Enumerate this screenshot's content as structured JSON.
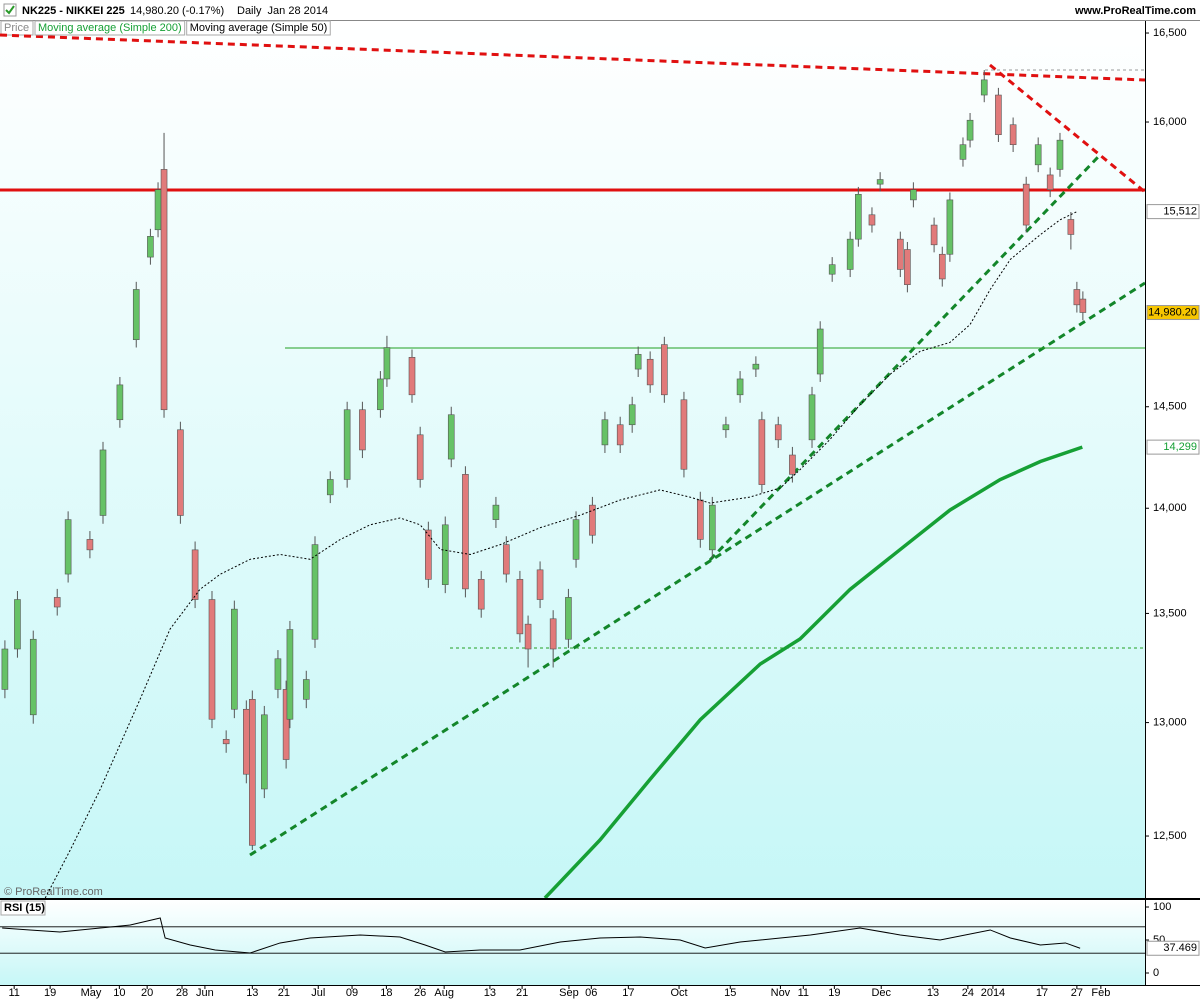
{
  "chart_data": [
    {
      "type": "candlestick",
      "title": "NK225 - NIKKEI 225",
      "subtitle": "14,980.20 (-0.17%)",
      "period": "Daily  Jan 28 2014",
      "source": "www.ProRealTime.com",
      "copyright": "© ProRealTime.com",
      "price_label": "Price",
      "last_value_label": "14,980.20",
      "flag_color": "#f7c600",
      "up_color": "#66c266",
      "down_color": "#e17a7a",
      "log_scale": true,
      "xlim": [
        -2.6,
        207.5
      ],
      "ylim": [
        12235,
        16563
      ],
      "yticks": [
        {
          "value": 16500,
          "label": "16,500"
        },
        {
          "value": 16000,
          "label": "16,000"
        },
        {
          "value": 14500,
          "label": "14,500"
        },
        {
          "value": 14000,
          "label": "14,000"
        },
        {
          "value": 13500,
          "label": "13,500"
        },
        {
          "value": 13000,
          "label": "13,000"
        },
        {
          "value": 12500,
          "label": "12,500"
        }
      ],
      "xticks": [
        {
          "value": 0,
          "label": "11"
        },
        {
          "value": 6.6,
          "label": "19"
        },
        {
          "value": 14.1,
          "label": "May"
        },
        {
          "value": 19.3,
          "label": "10"
        },
        {
          "value": 24.4,
          "label": "20"
        },
        {
          "value": 30.8,
          "label": "28"
        },
        {
          "value": 35,
          "label": "Jun"
        },
        {
          "value": 43.7,
          "label": "13"
        },
        {
          "value": 49.5,
          "label": "21"
        },
        {
          "value": 55.8,
          "label": "Jul"
        },
        {
          "value": 62,
          "label": "09"
        },
        {
          "value": 68.3,
          "label": "18"
        },
        {
          "value": 74.5,
          "label": "26"
        },
        {
          "value": 78.9,
          "label": "Aug"
        },
        {
          "value": 87.3,
          "label": "13"
        },
        {
          "value": 93.2,
          "label": "21"
        },
        {
          "value": 101.8,
          "label": "Sep"
        },
        {
          "value": 105.9,
          "label": "06"
        },
        {
          "value": 112.7,
          "label": "17"
        },
        {
          "value": 122,
          "label": "Oct"
        },
        {
          "value": 131.4,
          "label": "15"
        },
        {
          "value": 140.6,
          "label": "Nov"
        },
        {
          "value": 144.8,
          "label": "11"
        },
        {
          "value": 150.5,
          "label": "19"
        },
        {
          "value": 159.1,
          "label": "Dec"
        },
        {
          "value": 168.6,
          "label": "13"
        },
        {
          "value": 175,
          "label": "24"
        },
        {
          "value": 179.6,
          "label": "2014"
        },
        {
          "value": 188.6,
          "label": "17"
        },
        {
          "value": 195,
          "label": "27"
        },
        {
          "value": 199.4,
          "label": "Feb"
        }
      ],
      "x": [
        -1.7,
        0.6,
        3.5,
        7.9,
        9.9,
        13.9,
        16.3,
        19.4,
        22.4,
        25.0,
        26.4,
        27.5,
        30.5,
        33.2,
        36.3,
        38.9,
        40.4,
        42.6,
        43.7,
        45.9,
        48.4,
        49.9,
        50.6,
        53.6,
        55.2,
        58.0,
        61.1,
        63.9,
        67.2,
        68.4,
        73.0,
        74.5,
        76.0,
        79.1,
        80.2,
        82.8,
        85.7,
        88.4,
        90.3,
        92.8,
        94.3,
        96.5,
        98.9,
        101.7,
        103.1,
        106.1,
        108.4,
        111.2,
        113.4,
        114.5,
        116.7,
        119.3,
        122.9,
        125.9,
        128.1,
        130.6,
        133.2,
        136.1,
        137.2,
        140.2,
        142.8,
        146.4,
        147.9,
        150.1,
        153.4,
        154.9,
        157.4,
        158.9,
        162.6,
        163.9,
        165.0,
        168.8,
        170.3,
        171.7,
        174.1,
        175.4,
        178.0,
        180.6,
        183.3,
        185.7,
        187.9,
        190.1,
        191.9,
        193.9,
        195.0,
        196.1
      ],
      "open": [
        13150,
        13335,
        13035,
        13575,
        13685,
        13850,
        13965,
        14435,
        14840,
        15270,
        15415,
        15740,
        14385,
        13800,
        13565,
        12925,
        13060,
        13060,
        13105,
        12705,
        13150,
        13150,
        13015,
        13105,
        13380,
        14065,
        14140,
        14485,
        14485,
        14640,
        14750,
        14360,
        13895,
        13635,
        14240,
        14165,
        13660,
        13945,
        13825,
        13660,
        13450,
        13705,
        13475,
        13380,
        13755,
        14015,
        14310,
        14410,
        14410,
        14690,
        14740,
        14815,
        14535,
        14040,
        13800,
        14385,
        14560,
        14690,
        14435,
        14410,
        14260,
        14335,
        14665,
        15180,
        15205,
        15365,
        15495,
        15660,
        15365,
        15310,
        15575,
        15440,
        15285,
        15285,
        15795,
        15900,
        16150,
        16150,
        15985,
        15660,
        15765,
        15710,
        15740,
        15470,
        15100,
        15050
      ],
      "high": [
        13375,
        13605,
        13420,
        13615,
        13985,
        13890,
        14325,
        14650,
        15140,
        15420,
        15670,
        15940,
        14425,
        13840,
        13605,
        12965,
        13560,
        13100,
        13145,
        13075,
        13330,
        13190,
        13465,
        13235,
        13865,
        14180,
        14525,
        14525,
        14680,
        14860,
        14790,
        14400,
        13935,
        13960,
        14500,
        14205,
        13700,
        14055,
        13865,
        13700,
        13490,
        13745,
        13515,
        13615,
        13985,
        14055,
        14475,
        14450,
        14550,
        14805,
        14780,
        14855,
        14575,
        14080,
        14055,
        14450,
        14680,
        14755,
        14475,
        14450,
        14300,
        14600,
        14935,
        15270,
        15405,
        15645,
        15535,
        15725,
        15405,
        15350,
        15670,
        15480,
        15325,
        15615,
        15915,
        16050,
        16290,
        16190,
        16025,
        15700,
        15915,
        15750,
        15940,
        15510,
        15140,
        15090
      ],
      "low": [
        13110,
        13295,
        12995,
        13490,
        13645,
        13760,
        13925,
        14395,
        14800,
        15230,
        15375,
        14445,
        13925,
        13525,
        12975,
        12865,
        13020,
        12730,
        12440,
        12665,
        13110,
        12795,
        12975,
        13065,
        13340,
        14025,
        14100,
        14245,
        14445,
        14600,
        14520,
        14100,
        13620,
        13595,
        14200,
        13575,
        13480,
        13905,
        13645,
        13365,
        13250,
        13525,
        13250,
        13340,
        13715,
        13830,
        14270,
        14270,
        14370,
        14650,
        14570,
        14520,
        14150,
        13810,
        13760,
        14345,
        14520,
        14650,
        14075,
        14295,
        14125,
        14295,
        14625,
        15140,
        15165,
        15325,
        15400,
        15620,
        15165,
        15085,
        15535,
        15295,
        15115,
        15245,
        15755,
        15860,
        16110,
        15890,
        15835,
        15400,
        15725,
        15590,
        15700,
        15310,
        14980,
        14940
      ],
      "close": [
        13335,
        13565,
        13380,
        13530,
        13945,
        13800,
        14285,
        14610,
        15100,
        15380,
        15630,
        14485,
        13965,
        13565,
        13015,
        12905,
        13520,
        12770,
        12460,
        13035,
        13290,
        12835,
        13425,
        13195,
        13825,
        14140,
        14485,
        14285,
        14640,
        14800,
        14560,
        14140,
        13660,
        13920,
        14460,
        13615,
        13520,
        14015,
        13685,
        13405,
        13335,
        13565,
        13335,
        13575,
        13945,
        13870,
        14435,
        14310,
        14510,
        14765,
        14610,
        14560,
        14190,
        13850,
        14015,
        14410,
        14640,
        14715,
        14115,
        14335,
        14165,
        14560,
        14895,
        15230,
        15365,
        15605,
        15440,
        15685,
        15205,
        15125,
        15630,
        15335,
        15155,
        15575,
        15875,
        16010,
        16235,
        15930,
        15875,
        15440,
        15875,
        15630,
        15900,
        15390,
        15020,
        14980.2
      ],
      "series": [
        {
          "name": "Moving average (Simple 200)",
          "color": "#16a035",
          "last_value_label": "14,299",
          "x": [
            97.4,
            107.5,
            116.7,
            125.9,
            136.9,
            144.2,
            153.4,
            162.6,
            171.7,
            180.9,
            188.3,
            196.0
          ],
          "values": [
            12235,
            12483,
            12748,
            13013,
            13266,
            13381,
            13613,
            13802,
            13991,
            14139,
            14228,
            14299
          ]
        },
        {
          "name": "Moving average (Simple 50)",
          "color": "#000000",
          "last_value_label": "15,512",
          "x": [
            5.7,
            10.3,
            15.8,
            23.1,
            28.6,
            34.1,
            37.8,
            43.3,
            48.8,
            54.3,
            59.8,
            65.3,
            70.8,
            74.5,
            78.2,
            83.7,
            89.2,
            96.5,
            103.9,
            111.2,
            118.5,
            124.0,
            127.7,
            135.0,
            140.6,
            144.2,
            149.7,
            155.2,
            160.7,
            166.2,
            171.7,
            175.4,
            179.1,
            182.8,
            188.3,
            191.9,
            195.0
          ],
          "values": [
            12235,
            12440,
            12704,
            13105,
            13427,
            13613,
            13684,
            13755,
            13778,
            13755,
            13849,
            13920,
            13953,
            13920,
            13802,
            13778,
            13825,
            13906,
            13967,
            14040,
            14089,
            14054,
            14025,
            14054,
            14099,
            14188,
            14337,
            14510,
            14663,
            14780,
            14826,
            14918,
            15100,
            15258,
            15389,
            15468,
            15512
          ]
        }
      ]
    },
    {
      "type": "line",
      "title": "RSI (15)",
      "color": "#000000",
      "last_value_label": "37.469",
      "ylim": [
        -18.2,
        110.6
      ],
      "yticks": [
        100,
        50,
        0
      ],
      "levels": [
        70,
        30
      ],
      "x": [
        -2.2,
        2.9,
        8.4,
        15.8,
        21.3,
        26.8,
        27.7,
        32.3,
        36.9,
        43.3,
        48.8,
        54.3,
        63.5,
        70.8,
        75.4,
        79.1,
        85.5,
        92.8,
        100.2,
        107.5,
        114.9,
        122.2,
        126.8,
        133.2,
        140.6,
        146.1,
        155.2,
        162.6,
        169.9,
        179.1,
        182.8,
        188.3,
        192.9,
        195.6
      ],
      "values": [
        68.2,
        65.2,
        62.1,
        68.2,
        72.7,
        83.3,
        53.0,
        42.4,
        34.8,
        30.3,
        45.5,
        53.0,
        57.6,
        54.5,
        42.4,
        31.8,
        34.8,
        34.8,
        47.0,
        53.0,
        54.5,
        50.0,
        37.9,
        47.0,
        53.0,
        57.6,
        68.2,
        57.6,
        50.0,
        65.2,
        53.0,
        42.4,
        45.5,
        37.469
      ]
    }
  ]
}
